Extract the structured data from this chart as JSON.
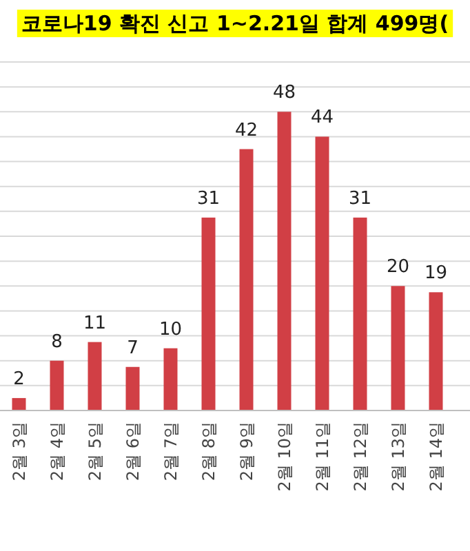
{
  "chart_data": {
    "type": "bar",
    "title": "코로나19 확진 신고 1~2.21일 합계 499명(",
    "categories": [
      "2월 3일",
      "2월 4일",
      "2월 5일",
      "2월 6일",
      "2월 7일",
      "2월 8일",
      "2월 9일",
      "2월 10일",
      "2월 11일",
      "2월 12일",
      "2월 13일",
      "2월 14일"
    ],
    "values": [
      2,
      8,
      11,
      7,
      10,
      31,
      42,
      48,
      44,
      31,
      20,
      19
    ],
    "color": "#d13f45",
    "data_labels": true,
    "ylim": [
      0,
      56
    ],
    "yticks": [
      {
        "value": 0,
        "label": null
      },
      {
        "value": 4,
        "label": null
      },
      {
        "value": 8,
        "label": null
      },
      {
        "value": 12,
        "label": null
      },
      {
        "value": 16,
        "label": null
      },
      {
        "value": 20,
        "label": null
      },
      {
        "value": 24,
        "label": null
      },
      {
        "value": 28,
        "label": null
      },
      {
        "value": 32,
        "label": null
      },
      {
        "value": 36,
        "label": null
      },
      {
        "value": 40,
        "label": null
      },
      {
        "value": 44,
        "label": null
      },
      {
        "value": 48,
        "label": null
      },
      {
        "value": 52,
        "label": null
      },
      {
        "value": 56,
        "label": null
      }
    ],
    "grid": "y",
    "tick_labels": "x"
  }
}
